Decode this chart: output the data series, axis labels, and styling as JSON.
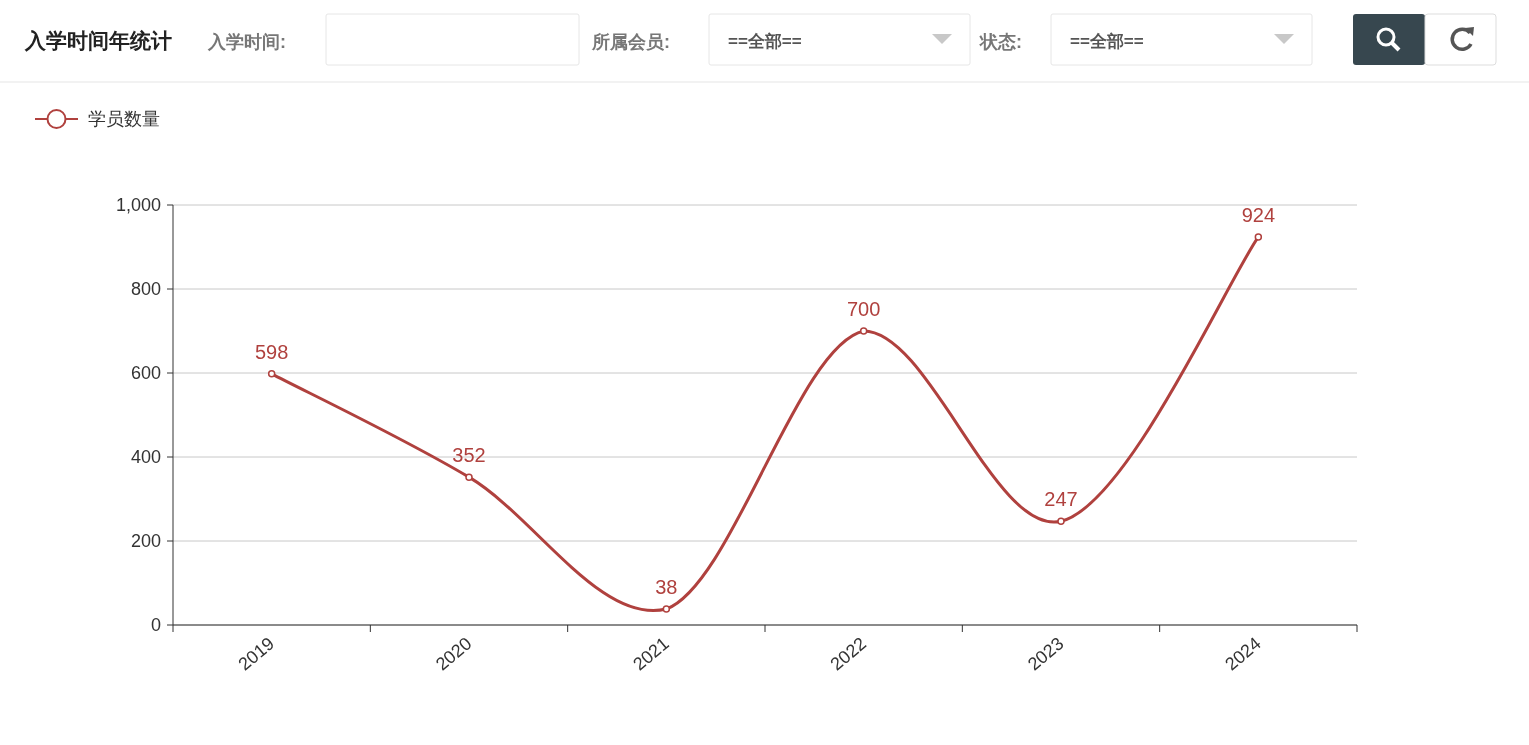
{
  "chart_data": {
    "type": "line",
    "title": "入学时间年统计",
    "annotations": [
      "入学时间:",
      "所属会员:",
      "==全部==",
      "状态:",
      "==全部=="
    ],
    "categories": [
      "2019",
      "2020",
      "2021",
      "2022",
      "2023",
      "2024"
    ],
    "series": [
      {
        "name": "学员数量",
        "color": "#b0413e",
        "values": [
          598,
          352,
          38,
          700,
          247,
          924
        ]
      }
    ],
    "ylim": [
      0,
      1000
    ],
    "yticks": [
      0,
      200,
      400,
      600,
      800,
      {
        "value": 1000,
        "label": "1,000"
      }
    ],
    "grid": "y",
    "legend": "top left",
    "marker": "circle",
    "line_style": "solid",
    "data_labels": true
  }
}
